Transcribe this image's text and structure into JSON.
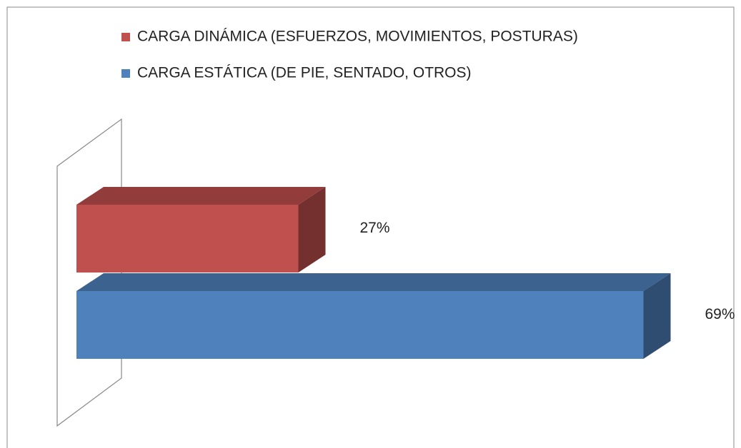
{
  "chart_data": {
    "type": "bar3d_horizontal",
    "categories": [
      null
    ],
    "series": [
      {
        "name": "CARGA DINÁMICA (ESFUERZOS, MOVIMIENTOS, POSTURAS)",
        "color": "#c0504d",
        "values": [
          27
        ],
        "value_labels": [
          "27%"
        ]
      },
      {
        "name": "CARGA ESTÁTICA (DE PIE, SENTADO, OTROS)",
        "color": "#4f81bd",
        "values": [
          69
        ],
        "value_labels": [
          "69%"
        ]
      }
    ],
    "xlim": [
      0,
      80
    ]
  }
}
